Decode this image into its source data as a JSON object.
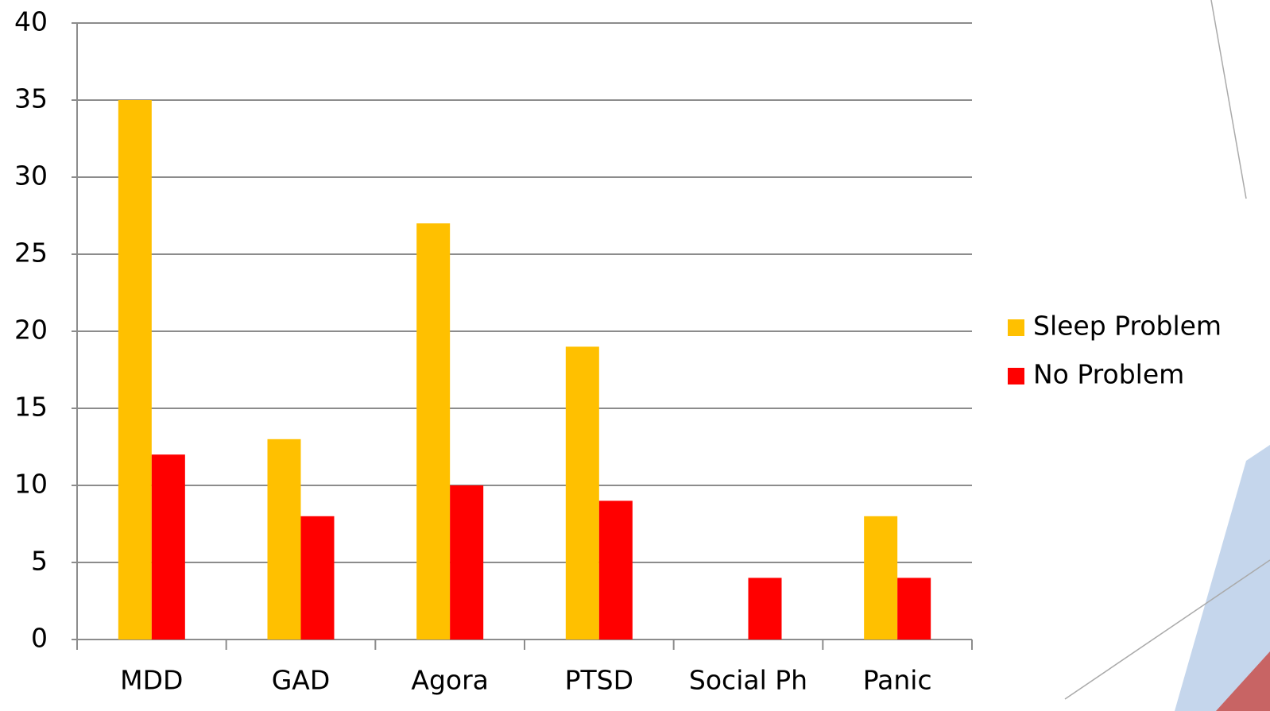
{
  "chart_data": {
    "type": "bar",
    "categories": [
      "MDD",
      "GAD",
      "Agora",
      "PTSD",
      "Social Ph",
      "Panic"
    ],
    "series": [
      {
        "name": "Sleep Problem",
        "color": "#ffc000",
        "values": [
          35,
          13,
          27,
          19,
          0,
          8
        ]
      },
      {
        "name": "No Problem",
        "color": "#ff0000",
        "values": [
          12,
          8,
          10,
          9,
          4,
          4
        ]
      }
    ],
    "ylim": [
      0,
      40
    ],
    "yticks": [
      0,
      5,
      10,
      15,
      20,
      25,
      30,
      35,
      40
    ],
    "grid": true,
    "legend": "right"
  }
}
